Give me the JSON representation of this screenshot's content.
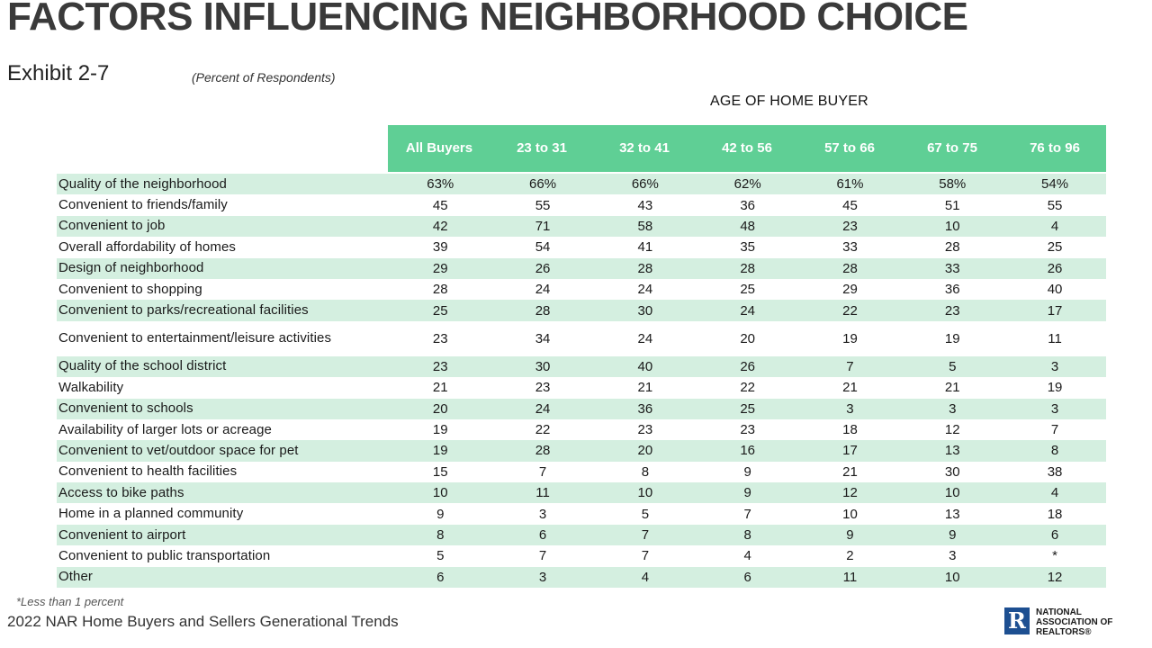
{
  "title": "FACTORS INFLUENCING NEIGHBORHOOD CHOICE",
  "exhibit": "Exhibit 2-7",
  "subtitle": "(Percent of Respondents)",
  "age_heading": "AGE OF HOME BUYER",
  "columns": [
    "All Buyers",
    "23 to 31",
    "32 to 41",
    "42 to 56",
    "57 to 66",
    "67 to 75",
    "76 to 96"
  ],
  "rows": [
    {
      "label": "Quality of the neighborhood",
      "values": [
        "63%",
        "66%",
        "66%",
        "62%",
        "61%",
        "58%",
        "54%"
      ]
    },
    {
      "label": "Convenient to friends/family",
      "values": [
        "45",
        "55",
        "43",
        "36",
        "45",
        "51",
        "55"
      ]
    },
    {
      "label": "Convenient to job",
      "values": [
        "42",
        "71",
        "58",
        "48",
        "23",
        "10",
        "4"
      ]
    },
    {
      "label": "Overall affordability of homes",
      "values": [
        "39",
        "54",
        "41",
        "35",
        "33",
        "28",
        "25"
      ]
    },
    {
      "label": "Design of neighborhood",
      "values": [
        "29",
        "26",
        "28",
        "28",
        "28",
        "33",
        "26"
      ]
    },
    {
      "label": "Convenient to shopping",
      "values": [
        "28",
        "24",
        "24",
        "25",
        "29",
        "36",
        "40"
      ]
    },
    {
      "label": "Convenient to parks/recreational facilities",
      "values": [
        "25",
        "28",
        "30",
        "24",
        "22",
        "23",
        "17"
      ]
    },
    {
      "label": "Convenient to entertainment/leisure activities",
      "values": [
        "23",
        "34",
        "24",
        "20",
        "19",
        "19",
        "11"
      ]
    },
    {
      "label": "Quality of the school district",
      "values": [
        "23",
        "30",
        "40",
        "26",
        "7",
        "5",
        "3"
      ]
    },
    {
      "label": "Walkability",
      "values": [
        "21",
        "23",
        "21",
        "22",
        "21",
        "21",
        "19"
      ]
    },
    {
      "label": "Convenient to schools",
      "values": [
        "20",
        "24",
        "36",
        "25",
        "3",
        "3",
        "3"
      ]
    },
    {
      "label": "Availability of larger lots or acreage",
      "values": [
        "19",
        "22",
        "23",
        "23",
        "18",
        "12",
        "7"
      ]
    },
    {
      "label": "Convenient to vet/outdoor space for pet",
      "values": [
        "19",
        "28",
        "20",
        "16",
        "17",
        "13",
        "8"
      ]
    },
    {
      "label": "Convenient to health facilities",
      "values": [
        "15",
        "7",
        "8",
        "9",
        "21",
        "30",
        "38"
      ]
    },
    {
      "label": "Access to bike paths",
      "values": [
        "10",
        "11",
        "10",
        "9",
        "12",
        "10",
        "4"
      ]
    },
    {
      "label": "Home in a planned community",
      "values": [
        "9",
        "3",
        "5",
        "7",
        "10",
        "13",
        "18"
      ]
    },
    {
      "label": "Convenient to airport",
      "values": [
        "8",
        "6",
        "7",
        "8",
        "9",
        "9",
        "6"
      ]
    },
    {
      "label": "Convenient to public transportation",
      "values": [
        "5",
        "7",
        "7",
        "4",
        "2",
        "3",
        "*"
      ]
    },
    {
      "label": "Other",
      "values": [
        "6",
        "3",
        "4",
        "6",
        "11",
        "10",
        "12"
      ]
    }
  ],
  "footnote": "*Less than 1 percent",
  "source": "2022 NAR Home Buyers and Sellers Generational Trends",
  "logo": {
    "mark": "R",
    "line1": "NATIONAL",
    "line2": "ASSOCIATION OF",
    "line3": "REALTORS®"
  },
  "colors": {
    "header_green": "#5fcf95",
    "stripe_green": "#d4efe0",
    "logo_blue": "#1d4f91"
  }
}
